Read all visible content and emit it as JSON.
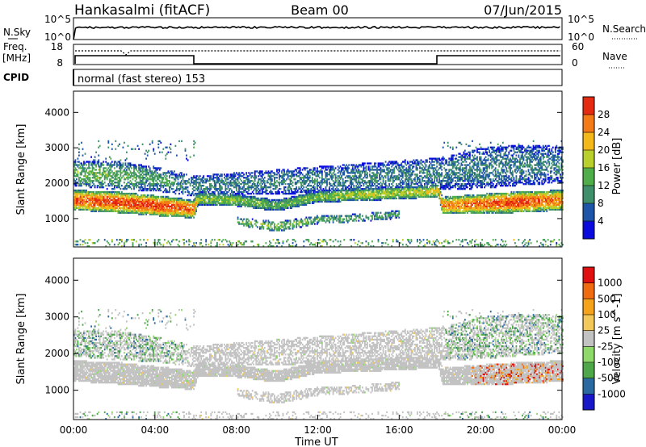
{
  "header": {
    "station": "Hankasalmi (fitACF)",
    "beam": "Beam 00",
    "date": "07/Jun/2015"
  },
  "top_panels": {
    "nsky_label": "N.Sky",
    "nsky_ticks": [
      "10^5",
      "10^0"
    ],
    "nsearch_label": "N.Search",
    "nsearch_ticks": [
      "10^5",
      "10^0"
    ],
    "freq_label": "Freq.",
    "freq_unit": "[MHz]",
    "freq_ticks": [
      "18",
      "8"
    ],
    "nave_label": "Nave",
    "nave_ticks": [
      "60",
      "0"
    ],
    "cpid_label": "CPID",
    "cpid_text": "normal (fast stereo) 153"
  },
  "colors": {
    "power": [
      "#0a0adc",
      "#1f55a8",
      "#3f8f6a",
      "#4fae4a",
      "#b8cf2c",
      "#f3b81a",
      "#f37a16",
      "#e52a12",
      "#dd0f0f"
    ],
    "velocity": [
      "#e01010",
      "#f06a10",
      "#f4a31a",
      "#f2c85a",
      "#c2c2c2",
      "#8fd86a",
      "#4ea84a",
      "#2a6aa0",
      "#1818c8"
    ]
  },
  "chart_data": [
    {
      "type": "heatmap",
      "name": "power",
      "xlabel": "",
      "ylabel": "Slant Range [km]",
      "yticks": [
        "1000",
        "2000",
        "3000",
        "4000"
      ],
      "ylim": [
        200,
        4600
      ],
      "colorbar": {
        "label": "Power [dB]",
        "ticks": [
          "4",
          "8",
          "12",
          "16",
          "20",
          "24",
          "28"
        ],
        "range": [
          0,
          32
        ]
      },
      "bands": [
        {
          "name": "main_echo",
          "t": [
            0,
            2,
            4,
            5.9,
            6.1,
            8,
            10,
            12,
            14,
            16,
            17.9,
            18.1,
            20,
            22,
            24
          ],
          "center_km": [
            1500,
            1450,
            1350,
            1250,
            1550,
            1500,
            1350,
            1600,
            1650,
            1700,
            1750,
            1350,
            1400,
            1450,
            1500
          ],
          "width_km": [
            500,
            520,
            500,
            450,
            320,
            300,
            280,
            280,
            300,
            300,
            300,
            420,
            480,
            520,
            500
          ],
          "level_db": [
            24,
            26,
            26,
            24,
            14,
            14,
            12,
            14,
            16,
            16,
            18,
            22,
            24,
            26,
            22
          ]
        },
        {
          "name": "upper_echo",
          "t": [
            0,
            2,
            4,
            5.9,
            18.1,
            20,
            22,
            24
          ],
          "center_km": [
            2250,
            2200,
            2100,
            1900,
            2250,
            2400,
            2500,
            2500
          ],
          "width_km": [
            600,
            700,
            600,
            500,
            800,
            1000,
            1000,
            900
          ],
          "level_db": [
            12,
            12,
            10,
            8,
            8,
            8,
            8,
            8
          ]
        },
        {
          "name": "lower_echo",
          "t": [
            8,
            10,
            12,
            14,
            16
          ],
          "center_km": [
            900,
            750,
            950,
            1000,
            1100
          ],
          "width_km": [
            200,
            250,
            200,
            200,
            200
          ],
          "level_db": [
            12,
            14,
            12,
            10,
            10
          ]
        }
      ]
    },
    {
      "type": "heatmap",
      "name": "velocity",
      "xlabel": "Time UT",
      "ylabel": "Slant Range [km]",
      "xticks": [
        "00:00",
        "04:00",
        "08:00",
        "12:00",
        "16:00",
        "20:00",
        "00:00"
      ],
      "xlim_hours": [
        0,
        24
      ],
      "yticks": [
        "1000",
        "2000",
        "3000",
        "4000"
      ],
      "ylim": [
        200,
        4600
      ],
      "colorbar": {
        "label": "Velocity [m s^-1]",
        "ticks": [
          "1000",
          "500",
          "100",
          "25",
          "-25",
          "-100",
          "-500",
          "-1000"
        ]
      },
      "notes": "Gray (-25..25 m/s) dominates; scattered green/blue (toward) and orange/red (away) patches near 00-05 UT and 18-24 UT."
    }
  ]
}
